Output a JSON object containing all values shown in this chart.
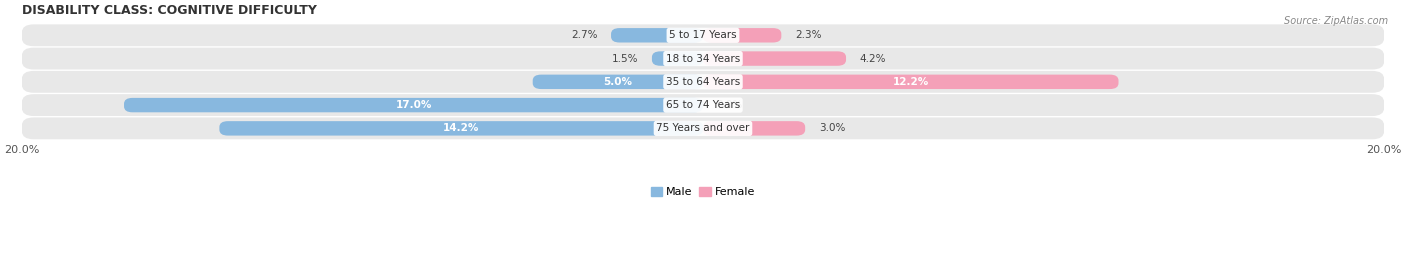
{
  "title": "DISABILITY CLASS: COGNITIVE DIFFICULTY",
  "source": "Source: ZipAtlas.com",
  "categories": [
    "5 to 17 Years",
    "18 to 34 Years",
    "35 to 64 Years",
    "65 to 74 Years",
    "75 Years and over"
  ],
  "male_values": [
    2.7,
    1.5,
    5.0,
    17.0,
    14.2
  ],
  "female_values": [
    2.3,
    4.2,
    12.2,
    0.0,
    3.0
  ],
  "max_val": 20.0,
  "male_color": "#88b8df",
  "female_color": "#f4a0b8",
  "row_bg_color": "#e8e8e8",
  "title_fontsize": 9,
  "label_fontsize": 7.5,
  "axis_label_fontsize": 8,
  "legend_fontsize": 8,
  "inside_label_color": "white",
  "outside_label_color": "#444444"
}
